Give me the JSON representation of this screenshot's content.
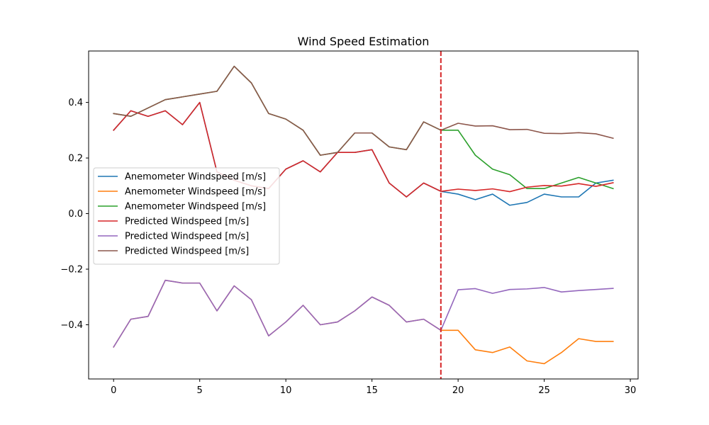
{
  "chart_data": {
    "type": "line",
    "title": "Wind Speed Estimation",
    "xlabel": "",
    "ylabel": "",
    "xlim": [
      -1.45,
      30.45
    ],
    "ylim": [
      -0.595,
      0.585
    ],
    "xticks": [
      0,
      5,
      10,
      15,
      20,
      25,
      30
    ],
    "yticks": [
      0.4,
      0.2,
      0.0,
      -0.2,
      -0.4
    ],
    "ytick_labels": [
      "0.4",
      "0.2",
      "0.0",
      "−0.2",
      "−0.4"
    ],
    "grid": false,
    "legend_position": "center-left",
    "vline": {
      "x": 19,
      "color": "#d62728",
      "style": "dashed"
    },
    "series": [
      {
        "name": "Anemometer Windspeed [m/s]",
        "color": "#1f77b4",
        "x": [
          0,
          1,
          2,
          3,
          4,
          5,
          6,
          7,
          8,
          9,
          10,
          11,
          12,
          13,
          14,
          15,
          16,
          17,
          18,
          19,
          20,
          21,
          22,
          23,
          24,
          25,
          26,
          27,
          28,
          29
        ],
        "values": [
          0.3,
          0.37,
          0.35,
          0.37,
          0.32,
          0.4,
          0.15,
          0.12,
          0.1,
          0.09,
          0.16,
          0.19,
          0.15,
          0.22,
          0.22,
          0.23,
          0.11,
          0.06,
          0.11,
          0.08,
          0.07,
          0.05,
          0.07,
          0.03,
          0.04,
          0.07,
          0.06,
          0.06,
          0.11,
          0.12
        ]
      },
      {
        "name": "Anemometer Windspeed [m/s]",
        "color": "#ff7f0e",
        "x": [
          0,
          1,
          2,
          3,
          4,
          5,
          6,
          7,
          8,
          9,
          10,
          11,
          12,
          13,
          14,
          15,
          16,
          17,
          18,
          19,
          20,
          21,
          22,
          23,
          24,
          25,
          26,
          27,
          28,
          29
        ],
        "values": [
          -0.48,
          -0.38,
          -0.37,
          -0.24,
          -0.25,
          -0.25,
          -0.35,
          -0.26,
          -0.31,
          -0.44,
          -0.39,
          -0.33,
          -0.4,
          -0.39,
          -0.35,
          -0.3,
          -0.33,
          -0.39,
          -0.38,
          -0.42,
          -0.42,
          -0.49,
          -0.5,
          -0.48,
          -0.53,
          -0.54,
          -0.5,
          -0.45,
          -0.46,
          -0.46
        ]
      },
      {
        "name": "Anemometer Windspeed [m/s]",
        "color": "#2ca02c",
        "x": [
          0,
          1,
          2,
          3,
          4,
          5,
          6,
          7,
          8,
          9,
          10,
          11,
          12,
          13,
          14,
          15,
          16,
          17,
          18,
          19,
          20,
          21,
          22,
          23,
          24,
          25,
          26,
          27,
          28,
          29
        ],
        "values": [
          0.36,
          0.35,
          0.38,
          0.41,
          0.42,
          0.43,
          0.44,
          0.53,
          0.47,
          0.36,
          0.34,
          0.3,
          0.21,
          0.22,
          0.29,
          0.29,
          0.24,
          0.23,
          0.33,
          0.3,
          0.3,
          0.21,
          0.16,
          0.14,
          0.09,
          0.09,
          0.11,
          0.13,
          0.11,
          0.09
        ]
      },
      {
        "name": "Predicted Windspeed [m/s]",
        "color": "#d62728",
        "x": [
          0,
          1,
          2,
          3,
          4,
          5,
          6,
          7,
          8,
          9,
          10,
          11,
          12,
          13,
          14,
          15,
          16,
          17,
          18,
          19,
          20,
          21,
          22,
          23,
          24,
          25,
          26,
          27,
          28,
          29
        ],
        "values": [
          0.3,
          0.37,
          0.35,
          0.37,
          0.32,
          0.4,
          0.15,
          0.12,
          0.1,
          0.09,
          0.16,
          0.19,
          0.15,
          0.22,
          0.22,
          0.23,
          0.11,
          0.06,
          0.11,
          0.08,
          0.088,
          0.083,
          0.089,
          0.079,
          0.095,
          0.101,
          0.099,
          0.108,
          0.098,
          0.111
        ]
      },
      {
        "name": "Predicted Windspeed [m/s]",
        "color": "#9467bd",
        "x": [
          0,
          1,
          2,
          3,
          4,
          5,
          6,
          7,
          8,
          9,
          10,
          11,
          12,
          13,
          14,
          15,
          16,
          17,
          18,
          19,
          20,
          21,
          22,
          23,
          24,
          25,
          26,
          27,
          28,
          29
        ],
        "values": [
          -0.48,
          -0.38,
          -0.37,
          -0.24,
          -0.25,
          -0.25,
          -0.35,
          -0.26,
          -0.31,
          -0.44,
          -0.39,
          -0.33,
          -0.4,
          -0.39,
          -0.35,
          -0.3,
          -0.33,
          -0.39,
          -0.38,
          -0.42,
          -0.274,
          -0.27,
          -0.287,
          -0.273,
          -0.271,
          -0.266,
          -0.282,
          -0.277,
          -0.273,
          -0.269
        ]
      },
      {
        "name": "Predicted Windspeed [m/s]",
        "color": "#8c564b",
        "x": [
          0,
          1,
          2,
          3,
          4,
          5,
          6,
          7,
          8,
          9,
          10,
          11,
          12,
          13,
          14,
          15,
          16,
          17,
          18,
          19,
          20,
          21,
          22,
          23,
          24,
          25,
          26,
          27,
          28,
          29
        ],
        "values": [
          0.36,
          0.35,
          0.38,
          0.41,
          0.42,
          0.43,
          0.44,
          0.53,
          0.47,
          0.36,
          0.34,
          0.3,
          0.21,
          0.22,
          0.29,
          0.29,
          0.24,
          0.23,
          0.33,
          0.3,
          0.325,
          0.315,
          0.316,
          0.302,
          0.303,
          0.289,
          0.288,
          0.291,
          0.287,
          0.271
        ]
      }
    ]
  }
}
